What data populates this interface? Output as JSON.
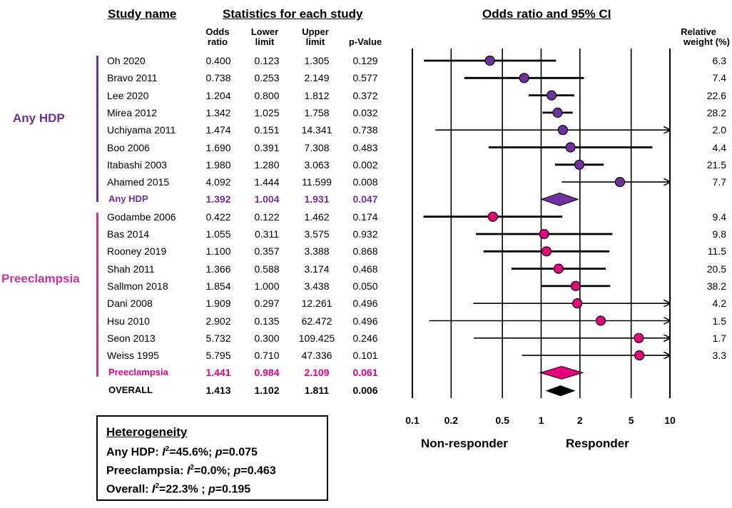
{
  "headers": {
    "study_name": "Study name",
    "statistics": "Statistics for each study",
    "or_ci": "Odds ratio and 95% CI",
    "odds_ratio": [
      "Odds",
      "ratio"
    ],
    "lower": [
      "Lower",
      "limit"
    ],
    "upper": [
      "Upper",
      "limit"
    ],
    "pvalue": "p-Value",
    "weight": [
      "Relative",
      "weight (%)"
    ]
  },
  "groups": [
    {
      "name": "Any HDP",
      "color": "#7030A0"
    },
    {
      "name": "Preeclampsia",
      "color": "#CC3399"
    }
  ],
  "rows": [
    {
      "study": "Oh 2020",
      "or": "0.400",
      "lower": "0.123",
      "upper": "1.305",
      "p": "0.129",
      "weight": "6.3"
    },
    {
      "study": "Bravo 2011",
      "or": "0.738",
      "lower": "0.253",
      "upper": "2.149",
      "p": "0.577",
      "weight": "7.4"
    },
    {
      "study": "Lee 2020",
      "or": "1.204",
      "lower": "0.800",
      "upper": "1.812",
      "p": "0.372",
      "weight": "22.6"
    },
    {
      "study": "Mirea 2012",
      "or": "1.342",
      "lower": "1.025",
      "upper": "1.758",
      "p": "0.032",
      "weight": "28.2"
    },
    {
      "study": "Uchiyama 2011",
      "or": "1.474",
      "lower": "0.151",
      "upper": "14.341",
      "p": "0.738",
      "weight": "2.0"
    },
    {
      "study": "Boo 2006",
      "or": "1.690",
      "lower": "0.391",
      "upper": "7.308",
      "p": "0.483",
      "weight": "4.4"
    },
    {
      "study": "Itabashi 2003",
      "or": "1.980",
      "lower": "1.280",
      "upper": "3.063",
      "p": "0.002",
      "weight": "21.5"
    },
    {
      "study": "Ahamed 2015",
      "or": "4.092",
      "lower": "1.444",
      "upper": "11.599",
      "p": "0.008",
      "weight": "7.7"
    },
    {
      "study": "Any HDP",
      "or": "1.392",
      "lower": "1.004",
      "upper": "1.931",
      "p": "0.047",
      "weight": ""
    },
    {
      "study": "Godambe 2006",
      "or": "0.422",
      "lower": "0.122",
      "upper": "1.462",
      "p": "0.174",
      "weight": "9.4"
    },
    {
      "study": "Bas 2014",
      "or": "1.055",
      "lower": "0.311",
      "upper": "3.575",
      "p": "0.932",
      "weight": "9.8"
    },
    {
      "study": "Rooney 2019",
      "or": "1.100",
      "lower": "0.357",
      "upper": "3.388",
      "p": "0.868",
      "weight": "11.5"
    },
    {
      "study": "Shah 2011",
      "or": "1.366",
      "lower": "0.588",
      "upper": "3.174",
      "p": "0.468",
      "weight": "20.5"
    },
    {
      "study": "Sallmon 2018",
      "or": "1.854",
      "lower": "1.000",
      "upper": "3.438",
      "p": "0.050",
      "weight": "38.2"
    },
    {
      "study": "Dani 2008",
      "or": "1.909",
      "lower": "0.297",
      "upper": "12.261",
      "p": "0.496",
      "weight": "4.2"
    },
    {
      "study": "Hsu 2010",
      "or": "2.902",
      "lower": "0.135",
      "upper": "62.472",
      "p": "0.496",
      "weight": "1.5"
    },
    {
      "study": "Seon 2013",
      "or": "5.732",
      "lower": "0.300",
      "upper": "109.425",
      "p": "0.246",
      "weight": "1.7"
    },
    {
      "study": "Weiss 1995",
      "or": "5.795",
      "lower": "0.710",
      "upper": "47.336",
      "p": "0.101",
      "weight": "3.3"
    },
    {
      "study": "Preeclampsia",
      "or": "1.441",
      "lower": "0.984",
      "upper": "2.109",
      "p": "0.061",
      "weight": ""
    },
    {
      "study": "OVERALL",
      "or": "1.413",
      "lower": "1.102",
      "upper": "1.811",
      "p": "0.006",
      "weight": ""
    }
  ],
  "chart_data": {
    "type": "scatter",
    "subtype": "forest-plot",
    "title": "Odds ratio and 95% CI",
    "xscale": "log",
    "xlim": [
      0.1,
      10
    ],
    "xticks": [
      "0.1",
      "0.2",
      "0.5",
      "1",
      "2",
      "5",
      "10"
    ],
    "xtick_values": [
      0.1,
      0.2,
      0.5,
      1,
      2,
      5,
      10
    ],
    "left_label": "Non-responder",
    "right_label": "Responder",
    "colors": {
      "any_hdp": "#7030A0",
      "preeclampsia": "#E6007E",
      "overall": "#000000"
    },
    "studies": [
      {
        "name": "Oh 2020",
        "group": "any_hdp",
        "or": 0.4,
        "lower": 0.123,
        "upper": 1.305
      },
      {
        "name": "Bravo 2011",
        "group": "any_hdp",
        "or": 0.738,
        "lower": 0.253,
        "upper": 2.149
      },
      {
        "name": "Lee 2020",
        "group": "any_hdp",
        "or": 1.204,
        "lower": 0.8,
        "upper": 1.812
      },
      {
        "name": "Mirea 2012",
        "group": "any_hdp",
        "or": 1.342,
        "lower": 1.025,
        "upper": 1.758
      },
      {
        "name": "Uchiyama 2011",
        "group": "any_hdp",
        "or": 1.474,
        "lower": 0.151,
        "upper": 14.341
      },
      {
        "name": "Boo 2006",
        "group": "any_hdp",
        "or": 1.69,
        "lower": 0.391,
        "upper": 7.308
      },
      {
        "name": "Itabashi 2003",
        "group": "any_hdp",
        "or": 1.98,
        "lower": 1.28,
        "upper": 3.063
      },
      {
        "name": "Ahamed 2015",
        "group": "any_hdp",
        "or": 4.092,
        "lower": 1.444,
        "upper": 11.599
      },
      {
        "name": "Any HDP",
        "group": "any_hdp",
        "summary": true,
        "or": 1.392,
        "lower": 1.004,
        "upper": 1.931
      },
      {
        "name": "Godambe 2006",
        "group": "preeclampsia",
        "or": 0.422,
        "lower": 0.122,
        "upper": 1.462
      },
      {
        "name": "Bas 2014",
        "group": "preeclampsia",
        "or": 1.055,
        "lower": 0.311,
        "upper": 3.575
      },
      {
        "name": "Rooney 2019",
        "group": "preeclampsia",
        "or": 1.1,
        "lower": 0.357,
        "upper": 3.388
      },
      {
        "name": "Shah 2011",
        "group": "preeclampsia",
        "or": 1.366,
        "lower": 0.588,
        "upper": 3.174
      },
      {
        "name": "Sallmon 2018",
        "group": "preeclampsia",
        "or": 1.854,
        "lower": 1.0,
        "upper": 3.438
      },
      {
        "name": "Dani 2008",
        "group": "preeclampsia",
        "or": 1.909,
        "lower": 0.297,
        "upper": 12.261
      },
      {
        "name": "Hsu 2010",
        "group": "preeclampsia",
        "or": 2.902,
        "lower": 0.135,
        "upper": 62.472
      },
      {
        "name": "Seon 2013",
        "group": "preeclampsia",
        "or": 5.732,
        "lower": 0.3,
        "upper": 109.425
      },
      {
        "name": "Weiss 1995",
        "group": "preeclampsia",
        "or": 5.795,
        "lower": 0.71,
        "upper": 47.336
      },
      {
        "name": "Preeclampsia",
        "group": "preeclampsia",
        "summary": true,
        "or": 1.441,
        "lower": 0.984,
        "upper": 2.109
      },
      {
        "name": "OVERALL",
        "group": "overall",
        "summary": true,
        "or": 1.413,
        "lower": 1.102,
        "upper": 1.811
      }
    ]
  },
  "heterogeneity": {
    "title": "Heterogeneity",
    "any_hdp": {
      "label": "Any HDP: ",
      "i2": "=45.6%; ",
      "p": "=0.075"
    },
    "preeclampsia": {
      "label": "Preeclampsia: ",
      "i2": "=0.0%; ",
      "p": "=0.463"
    },
    "overall": {
      "label": "Overall: ",
      "i2": "=22.3% ; ",
      "p": "=0.195"
    }
  }
}
